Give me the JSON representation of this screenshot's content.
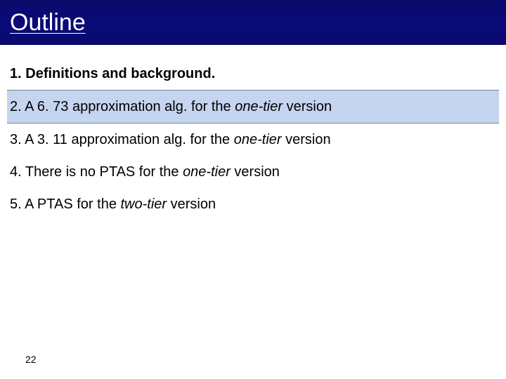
{
  "header": {
    "title": "Outline"
  },
  "items": [
    {
      "num": "1.",
      "text_a": "Definitions and background.",
      "italic": "",
      "text_b": "",
      "bold": true,
      "highlight": false,
      "border": true
    },
    {
      "num": "2.",
      "text_a": "A 6. 73 approximation alg. for the ",
      "italic": "one-tier",
      "text_b": " version",
      "bold": false,
      "highlight": true,
      "border": true
    },
    {
      "num": "3.",
      "text_a": "A 3. 11 approximation alg. for the ",
      "italic": "one-tier",
      "text_b": " version",
      "bold": false,
      "highlight": false,
      "border": false
    },
    {
      "num": "4.",
      "text_a": "There is no PTAS for the ",
      "italic": "one-tier",
      "text_b": " version",
      "bold": false,
      "highlight": false,
      "border": false
    },
    {
      "num": "5.",
      "text_a": "A PTAS for the ",
      "italic": "two-tier",
      "text_b": " version",
      "bold": false,
      "highlight": false,
      "border": false
    }
  ],
  "page_number": "22",
  "colors": {
    "header_bg": "#0a0a6b",
    "highlight_bg": "#c5d4ef",
    "border": "#808080",
    "text": "#000000",
    "title": "#ffffff"
  },
  "typography": {
    "title_fontsize": 34,
    "item_fontsize": 20,
    "pagenum_fontsize": 14
  }
}
